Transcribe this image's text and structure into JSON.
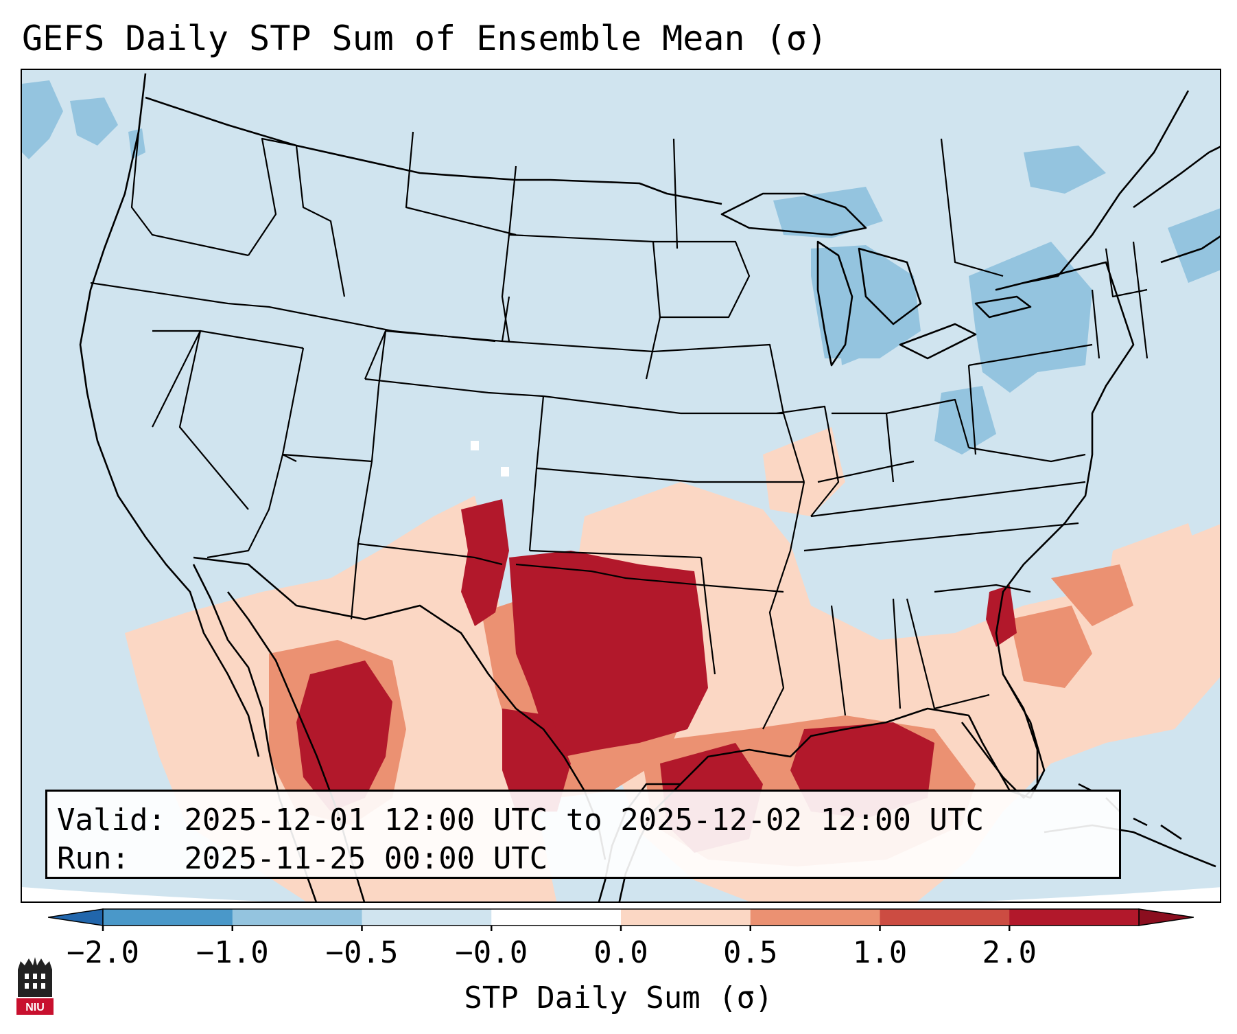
{
  "title": "GEFS Daily STP Sum of Ensemble Mean (σ)",
  "info": {
    "valid_line": "Valid: 2025-12-01 12:00 UTC to 2025-12-02 12:00 UTC",
    "run_line": "Run:   2025-11-25 00:00 UTC"
  },
  "colorbar": {
    "label": "STP Daily Sum (σ)",
    "ticks": [
      "−2.0",
      "−1.0",
      "−0.5",
      "−0.0",
      "0.0",
      "0.5",
      "1.0",
      "2.0"
    ],
    "colors": [
      "#4a98c9",
      "#94c4df",
      "#d0e4ef",
      "#ffffff",
      "#fbd7c4",
      "#eb9172",
      "#cc4c42",
      "#b2182b"
    ],
    "under_color": "#2166ac",
    "over_color": "#8b0e1f"
  },
  "map": {
    "background_color": "#d0e4ef",
    "outside_color": "#ffffff"
  },
  "logo": {
    "text": "NIU"
  }
}
